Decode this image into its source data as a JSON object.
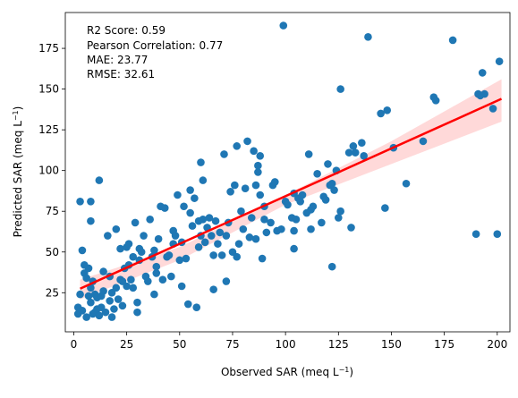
{
  "chart_data": {
    "type": "scatter",
    "xlabel": "Observed SAR (meq L$^{-1}$)",
    "ylabel": "Predicted SAR (meq L$^{-1}$)",
    "xlabel_main": "Observed SAR (meq L",
    "ylabel_main": "Predicted SAR (meq L",
    "unit_superscript": "−1",
    "unit_close": ")",
    "xlim": [
      -4,
      206
    ],
    "ylim": [
      1,
      197
    ],
    "x_ticks": [
      0,
      25,
      50,
      75,
      100,
      125,
      150,
      175,
      200
    ],
    "y_ticks": [
      25,
      50,
      75,
      100,
      125,
      150,
      175
    ],
    "grid": false,
    "annotations": [
      "R2 Score: 0.59",
      "Pearson Correlation: 0.77",
      "MAE: 23.77",
      "RMSE: 32.61"
    ],
    "series": [
      {
        "kind": "scatter",
        "color": "#1f77b4",
        "points": [
          [
            2,
            12
          ],
          [
            2,
            16
          ],
          [
            3,
            81
          ],
          [
            3,
            24
          ],
          [
            4,
            51
          ],
          [
            4,
            14
          ],
          [
            5,
            42
          ],
          [
            5,
            37
          ],
          [
            6,
            34
          ],
          [
            6,
            10
          ],
          [
            7,
            40
          ],
          [
            7,
            23
          ],
          [
            8,
            81
          ],
          [
            8,
            69
          ],
          [
            8,
            28
          ],
          [
            8,
            19
          ],
          [
            9,
            32
          ],
          [
            9,
            12
          ],
          [
            10,
            24
          ],
          [
            10,
            13
          ],
          [
            11,
            22
          ],
          [
            11,
            15
          ],
          [
            12,
            94
          ],
          [
            12,
            11
          ],
          [
            13,
            23
          ],
          [
            13,
            16
          ],
          [
            14,
            38
          ],
          [
            14,
            26
          ],
          [
            15,
            13
          ],
          [
            16,
            60
          ],
          [
            17,
            35
          ],
          [
            17,
            20
          ],
          [
            18,
            25
          ],
          [
            18,
            10
          ],
          [
            19,
            15
          ],
          [
            20,
            64
          ],
          [
            20,
            28
          ],
          [
            21,
            21
          ],
          [
            22,
            52
          ],
          [
            22,
            33
          ],
          [
            23,
            32
          ],
          [
            23,
            17
          ],
          [
            24,
            40
          ],
          [
            25,
            53
          ],
          [
            25,
            29
          ],
          [
            26,
            42
          ],
          [
            26,
            55
          ],
          [
            27,
            33
          ],
          [
            28,
            28
          ],
          [
            28,
            47
          ],
          [
            29,
            68
          ],
          [
            30,
            13
          ],
          [
            30,
            19
          ],
          [
            31,
            45
          ],
          [
            31,
            52
          ],
          [
            32,
            50
          ],
          [
            33,
            60
          ],
          [
            34,
            35
          ],
          [
            35,
            32
          ],
          [
            36,
            70
          ],
          [
            37,
            47
          ],
          [
            38,
            51
          ],
          [
            38,
            24
          ],
          [
            39,
            37
          ],
          [
            39,
            41
          ],
          [
            40,
            58
          ],
          [
            41,
            78
          ],
          [
            42,
            33
          ],
          [
            43,
            77
          ],
          [
            44,
            47
          ],
          [
            45,
            48
          ],
          [
            46,
            35
          ],
          [
            47,
            55
          ],
          [
            47,
            63
          ],
          [
            48,
            60
          ],
          [
            49,
            85
          ],
          [
            50,
            45
          ],
          [
            51,
            29
          ],
          [
            51,
            56
          ],
          [
            52,
            78
          ],
          [
            53,
            46
          ],
          [
            54,
            18
          ],
          [
            55,
            88
          ],
          [
            55,
            74
          ],
          [
            56,
            66
          ],
          [
            57,
            83
          ],
          [
            58,
            16
          ],
          [
            59,
            53
          ],
          [
            59,
            69
          ],
          [
            60,
            60
          ],
          [
            60,
            105
          ],
          [
            61,
            94
          ],
          [
            61,
            70
          ],
          [
            62,
            56
          ],
          [
            63,
            65
          ],
          [
            64,
            71
          ],
          [
            65,
            60
          ],
          [
            66,
            27
          ],
          [
            66,
            48
          ],
          [
            67,
            69
          ],
          [
            68,
            55
          ],
          [
            69,
            62
          ],
          [
            70,
            48
          ],
          [
            71,
            110
          ],
          [
            72,
            32
          ],
          [
            72,
            60
          ],
          [
            73,
            68
          ],
          [
            74,
            87
          ],
          [
            75,
            50
          ],
          [
            76,
            91
          ],
          [
            77,
            47
          ],
          [
            77,
            115
          ],
          [
            78,
            55
          ],
          [
            79,
            75
          ],
          [
            80,
            64
          ],
          [
            81,
            89
          ],
          [
            82,
            118
          ],
          [
            83,
            59
          ],
          [
            84,
            71
          ],
          [
            85,
            112
          ],
          [
            86,
            58
          ],
          [
            86,
            91
          ],
          [
            87,
            103
          ],
          [
            87,
            99
          ],
          [
            88,
            85
          ],
          [
            88,
            109
          ],
          [
            89,
            46
          ],
          [
            90,
            78
          ],
          [
            90,
            70
          ],
          [
            91,
            62
          ],
          [
            93,
            68
          ],
          [
            94,
            91
          ],
          [
            95,
            93
          ],
          [
            96,
            63
          ],
          [
            98,
            64
          ],
          [
            99,
            189
          ],
          [
            100,
            81
          ],
          [
            101,
            79
          ],
          [
            103,
            71
          ],
          [
            104,
            63
          ],
          [
            104,
            52
          ],
          [
            104,
            86
          ],
          [
            105,
            70
          ],
          [
            106,
            83
          ],
          [
            107,
            81
          ],
          [
            108,
            85
          ],
          [
            110,
            74
          ],
          [
            111,
            110
          ],
          [
            112,
            64
          ],
          [
            112,
            76
          ],
          [
            113,
            78
          ],
          [
            115,
            98
          ],
          [
            117,
            68
          ],
          [
            118,
            84
          ],
          [
            119,
            82
          ],
          [
            120,
            104
          ],
          [
            121,
            91
          ],
          [
            122,
            92
          ],
          [
            122,
            41
          ],
          [
            123,
            88
          ],
          [
            124,
            100
          ],
          [
            125,
            71
          ],
          [
            126,
            75
          ],
          [
            126,
            150
          ],
          [
            130,
            111
          ],
          [
            131,
            65
          ],
          [
            132,
            115
          ],
          [
            133,
            111
          ],
          [
            136,
            117
          ],
          [
            137,
            109
          ],
          [
            139,
            182
          ],
          [
            145,
            135
          ],
          [
            147,
            77
          ],
          [
            148,
            137
          ],
          [
            151,
            114
          ],
          [
            157,
            92
          ],
          [
            165,
            118
          ],
          [
            170,
            145
          ],
          [
            171,
            143
          ],
          [
            179,
            180
          ],
          [
            190,
            61
          ],
          [
            191,
            147
          ],
          [
            192,
            146
          ],
          [
            193,
            160
          ],
          [
            194,
            147
          ],
          [
            198,
            138
          ],
          [
            200,
            61
          ],
          [
            201,
            167
          ]
        ]
      },
      {
        "kind": "regression-line",
        "color": "#ff0000",
        "x": [
          3,
          202
        ],
        "y": [
          27.5,
          144
        ]
      },
      {
        "kind": "confidence-band",
        "color": "#ffcccc",
        "x": [
          3,
          50,
          100,
          150,
          202
        ],
        "upper": [
          33,
          53,
          85,
          118,
          156
        ],
        "lower": [
          21,
          45,
          79,
          104,
          130
        ]
      }
    ]
  }
}
